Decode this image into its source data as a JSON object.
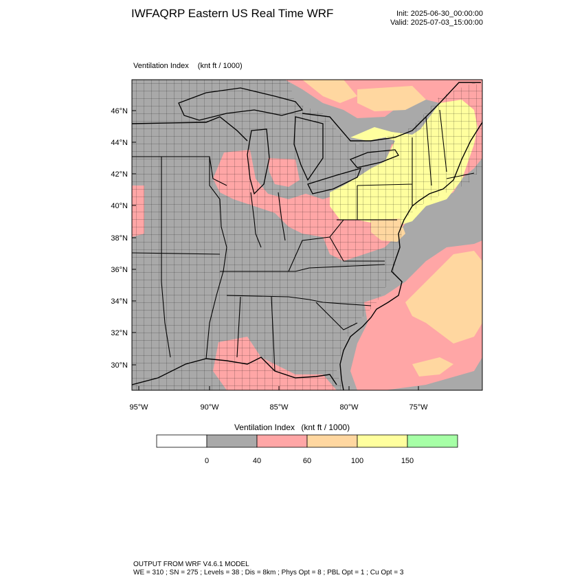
{
  "title": "IWFAQRP Eastern US Real Time WRF",
  "init": "Init: 2025-06-30_00:00:00",
  "valid": "Valid: 2025-07-03_15:00:00",
  "field": {
    "name": "Ventilation Index",
    "units": "(knt ft / 1000)"
  },
  "map": {
    "lat_labels": [
      "46°N",
      "44°N",
      "42°N",
      "40°N",
      "38°N",
      "36°N",
      "34°N",
      "32°N",
      "30°N"
    ],
    "lon_labels": [
      "95°W",
      "90°W",
      "85°W",
      "80°W",
      "75°W"
    ],
    "colors": {
      "land": "#a9a9a9",
      "water": "#a9a9a9",
      "border": "#000000"
    }
  },
  "colorbar": {
    "bins": [
      {
        "color": "#ffffff"
      },
      {
        "color": "#a9a9a9"
      },
      {
        "color": "#ffa6a6"
      },
      {
        "color": "#ffd7a0"
      },
      {
        "color": "#ffff9e"
      },
      {
        "color": "#a6ffa6"
      }
    ],
    "tick_labels": [
      "0",
      "40",
      "60",
      "100",
      "150"
    ]
  },
  "footer": {
    "line1": "OUTPUT FROM WRF V4.6.1 MODEL",
    "line2": "WE = 310 ; SN = 275 ; Levels = 38 ; Dis = 8km ; Phys Opt = 8 ; PBL Opt = 1 ; Cu Opt = 3"
  }
}
